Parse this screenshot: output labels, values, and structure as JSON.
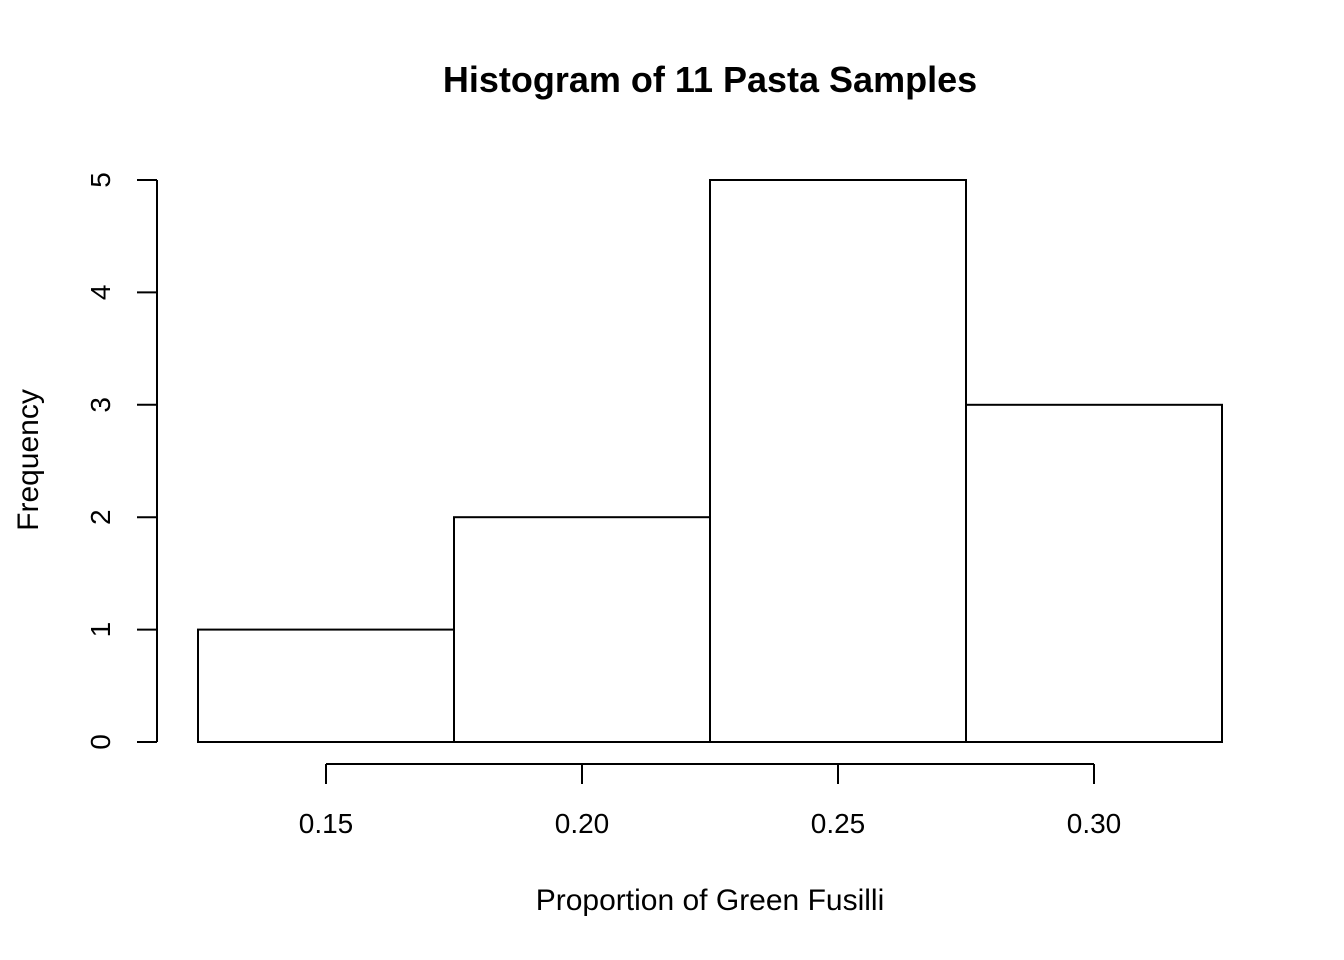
{
  "chart_data": {
    "type": "bar",
    "subtype": "histogram",
    "title": "Histogram of 11 Pasta Samples",
    "xlabel": "Proportion of Green Fusilli",
    "ylabel": "Frequency",
    "bins": [
      {
        "x0": 0.125,
        "x1": 0.175,
        "count": 1
      },
      {
        "x0": 0.175,
        "x1": 0.225,
        "count": 2
      },
      {
        "x0": 0.225,
        "x1": 0.275,
        "count": 5
      },
      {
        "x0": 0.275,
        "x1": 0.325,
        "count": 3
      }
    ],
    "xlim": [
      0.125,
      0.325
    ],
    "ylim": [
      0,
      5
    ],
    "x_ticks": [
      0.15,
      0.2,
      0.25,
      0.3
    ],
    "x_tick_labels": [
      "0.15",
      "0.20",
      "0.25",
      "0.30"
    ],
    "y_ticks": [
      0,
      1,
      2,
      3,
      4,
      5
    ],
    "y_tick_labels": [
      "0",
      "1",
      "2",
      "3",
      "4",
      "5"
    ],
    "grid": false,
    "legend": "none",
    "bar_fill": "#ffffff",
    "bar_stroke": "#000000"
  }
}
